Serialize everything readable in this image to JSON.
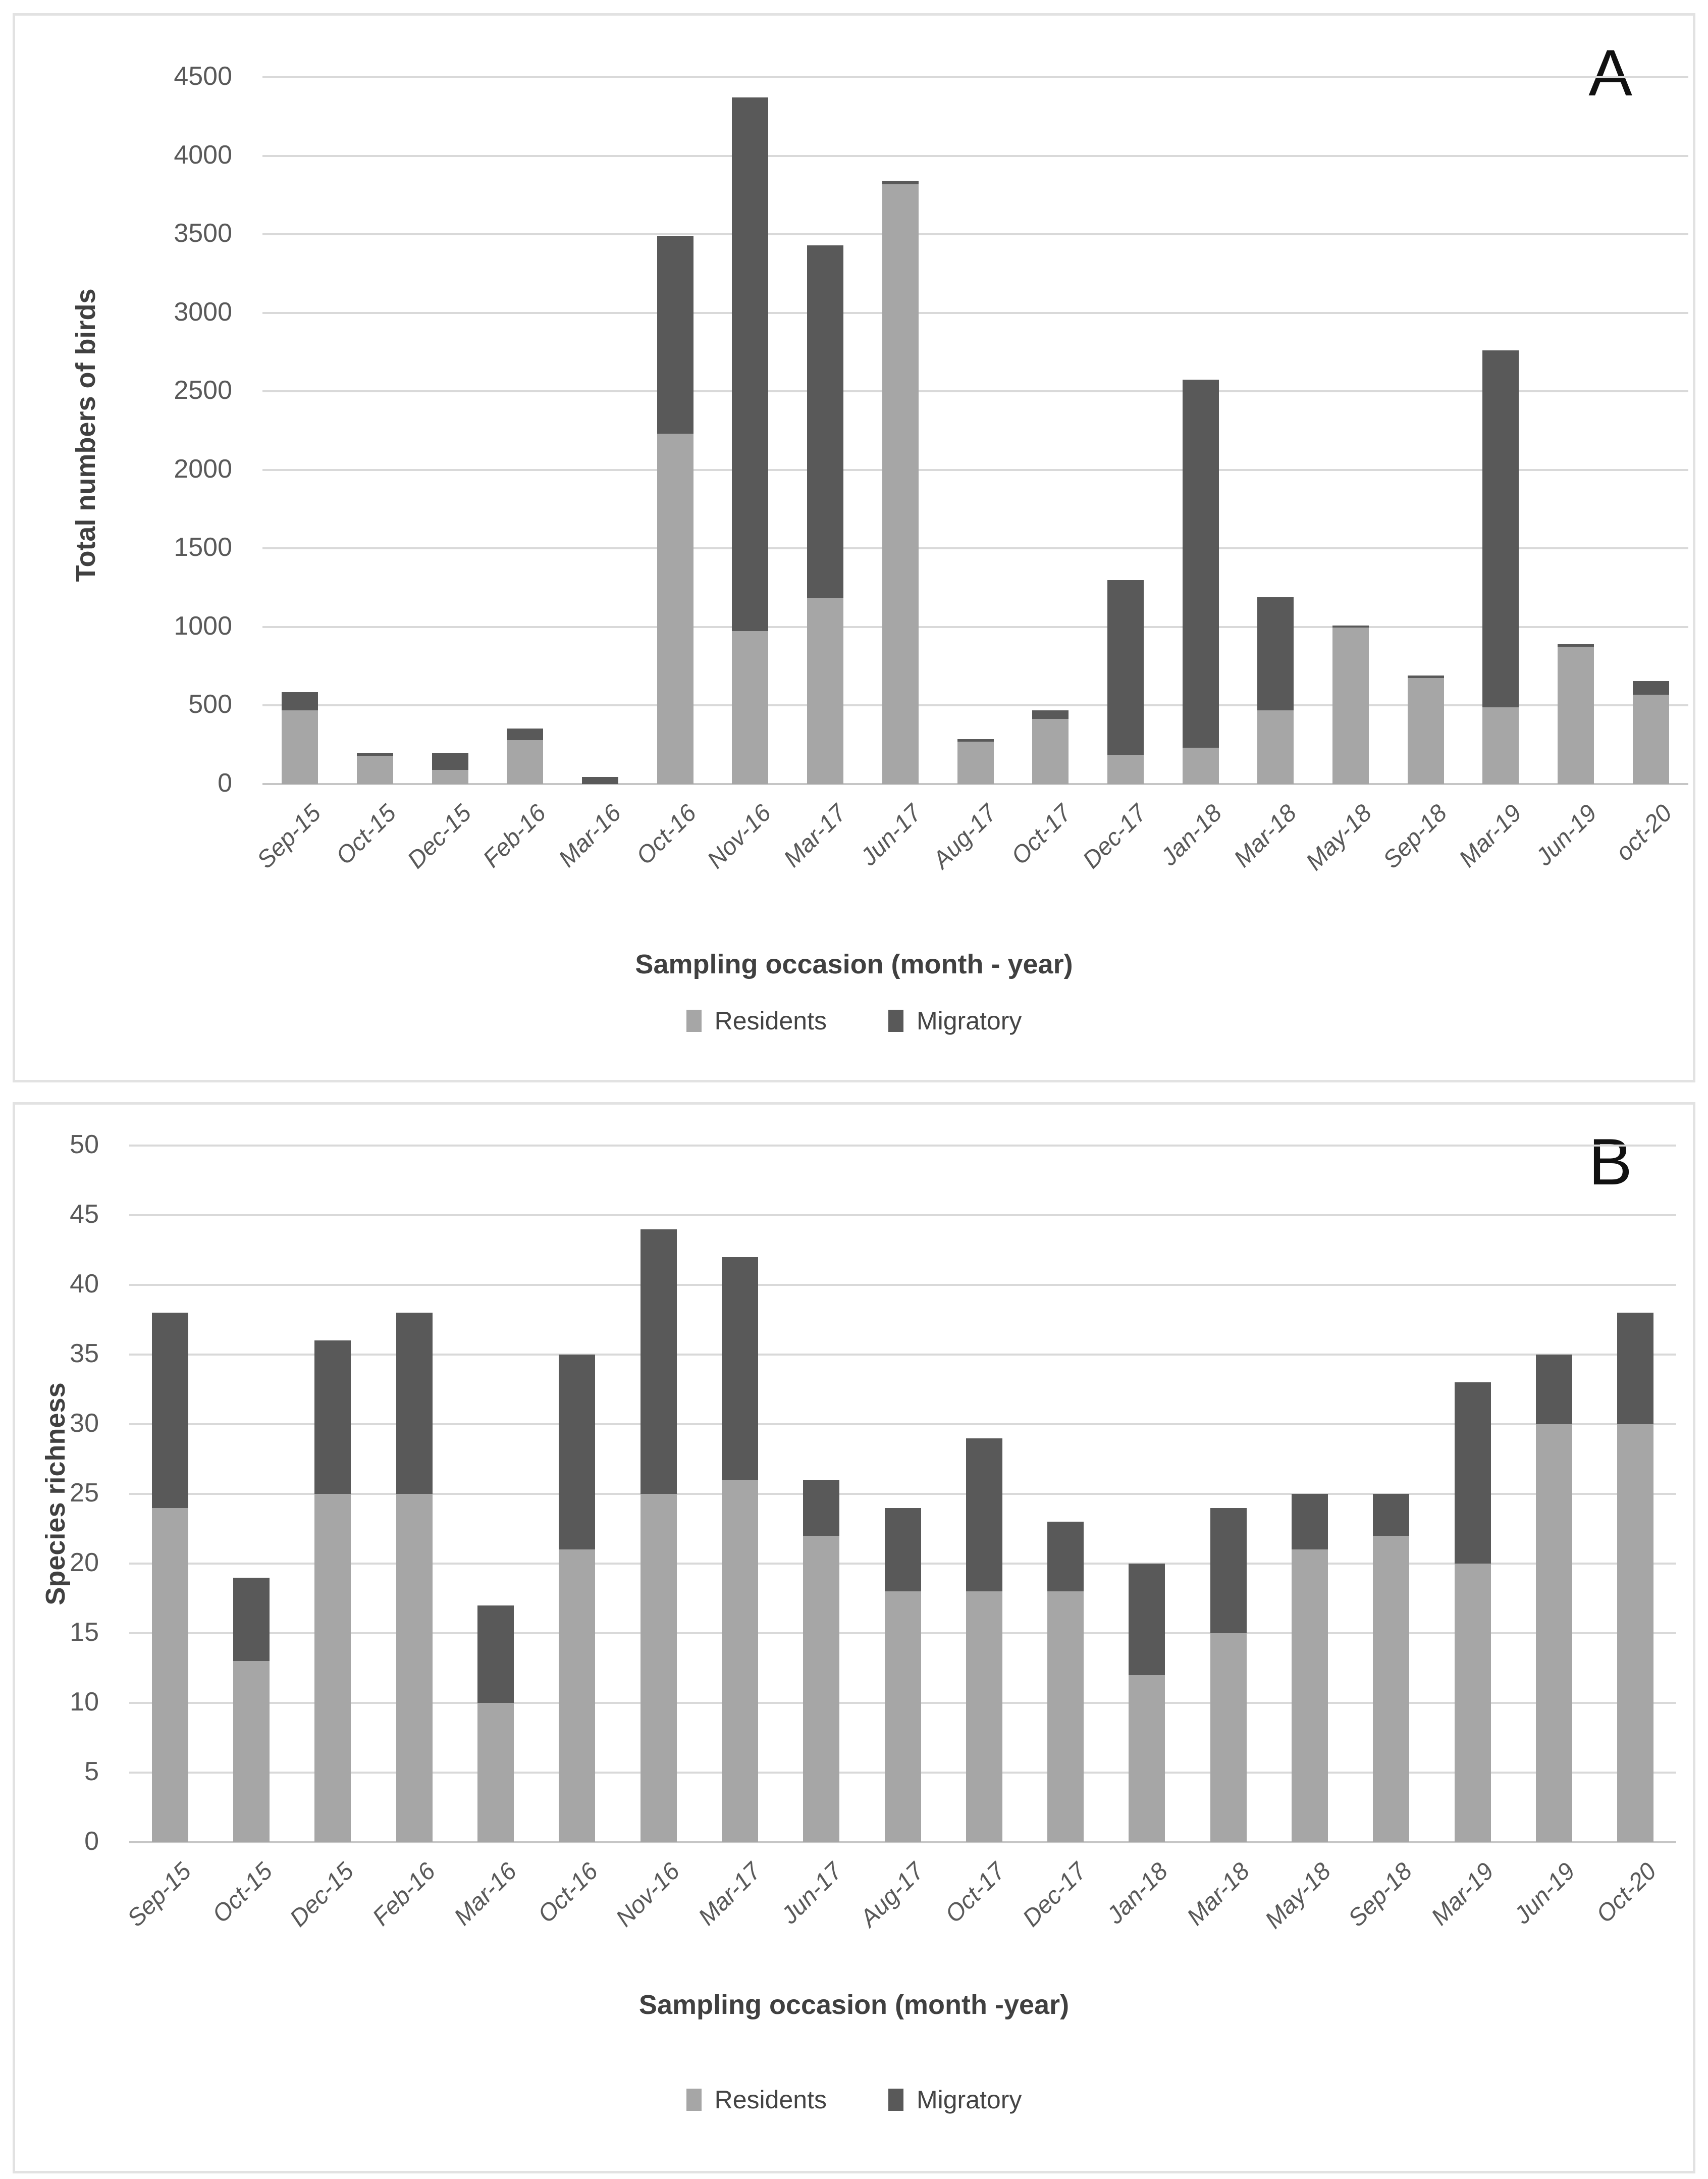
{
  "chart_data": [
    {
      "type": "bar",
      "stacked": true,
      "panel_label": "A",
      "xlabel": "Sampling occasion (month - year)",
      "ylabel": "Total numbers of birds",
      "ylim": [
        0,
        4500
      ],
      "ytick_step": 500,
      "yticks": [
        0,
        500,
        1000,
        1500,
        2000,
        2500,
        3000,
        3500,
        4000,
        4500
      ],
      "grid": true,
      "legend_position": "bottom",
      "categories": [
        "Sep-15",
        "Oct-15",
        "Dec-15",
        "Feb-16",
        "Mar-16",
        "Oct-16",
        "Nov-16",
        "Mar-17",
        "Jun-17",
        "Aug-17",
        "Oct-17",
        "Dec-17",
        "Jan-18",
        "Mar-18",
        "May-18",
        "Sep-18",
        "Mar-19",
        "Jun-19",
        "oct-20"
      ],
      "series": [
        {
          "name": "Residents",
          "color": "#a6a6a6",
          "values": [
            470,
            180,
            90,
            280,
            0,
            2230,
            975,
            1185,
            3820,
            270,
            415,
            185,
            230,
            470,
            995,
            675,
            490,
            875,
            570
          ]
        },
        {
          "name": "Migratory",
          "color": "#595959",
          "values": [
            115,
            20,
            110,
            75,
            45,
            1260,
            3395,
            2245,
            20,
            15,
            55,
            1115,
            2345,
            720,
            15,
            15,
            2270,
            15,
            85
          ]
        }
      ]
    },
    {
      "type": "bar",
      "stacked": true,
      "panel_label": "B",
      "xlabel": "Sampling occasion (month -year)",
      "ylabel": "Species richness",
      "ylim": [
        0,
        50
      ],
      "ytick_step": 5,
      "yticks": [
        0,
        5,
        10,
        15,
        20,
        25,
        30,
        35,
        40,
        45,
        50
      ],
      "grid": true,
      "legend_position": "bottom",
      "categories": [
        "Sep-15",
        "Oct-15",
        "Dec-15",
        "Feb-16",
        "Mar-16",
        "Oct-16",
        "Nov-16",
        "Mar-17",
        "Jun-17",
        "Aug-17",
        "Oct-17",
        "Dec-17",
        "Jan-18",
        "Mar-18",
        "May-18",
        "Sep-18",
        "Mar-19",
        "Jun-19",
        "Oct-20"
      ],
      "series": [
        {
          "name": "Residents",
          "color": "#a6a6a6",
          "values": [
            24,
            13,
            25,
            25,
            10,
            21,
            25,
            26,
            22,
            18,
            18,
            18,
            12,
            15,
            21,
            22,
            20,
            30,
            30
          ]
        },
        {
          "name": "Migratory",
          "color": "#595959",
          "values": [
            14,
            6,
            11,
            13,
            7,
            14,
            19,
            16,
            4,
            6,
            11,
            5,
            8,
            9,
            4,
            3,
            13,
            5,
            8
          ]
        }
      ]
    }
  ],
  "colors": {
    "residents": "#a6a6a6",
    "migratory": "#595959",
    "gridline": "#d9d9d9",
    "tick_text": "#595959",
    "axis_title": "#404040",
    "panel_border": "#e2e2e2"
  }
}
